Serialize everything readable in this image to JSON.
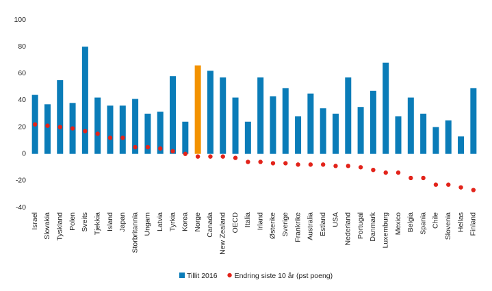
{
  "chart_data": {
    "type": "bar",
    "categories": [
      "Israel",
      "Slovakia",
      "Tyskland",
      "Polen",
      "Sveits",
      "Tjekkia",
      "Island",
      "Japan",
      "Storbritannia",
      "Ungarn",
      "Latvia",
      "Tyrkia",
      "Korea",
      "Norge",
      "Canada",
      "New Zealand",
      "OECD",
      "Italia",
      "Irland",
      "Østerike",
      "Sverige",
      "Frankrike",
      "Australia",
      "Estland",
      "USA",
      "Nederland",
      "Portugal",
      "Danmark",
      "Luxemburg",
      "Mexico",
      "Belgia",
      "Spania",
      "Chile",
      "Slovenia",
      "Hellas",
      "Finland"
    ],
    "series": [
      {
        "name": "Tillit 2016",
        "type": "bar",
        "color": "#0a7cb8",
        "colors": [
          "#0a7cb8",
          "#0a7cb8",
          "#0a7cb8",
          "#0a7cb8",
          "#0a7cb8",
          "#0a7cb8",
          "#0a7cb8",
          "#0a7cb8",
          "#0a7cb8",
          "#0a7cb8",
          "#0a7cb8",
          "#0a7cb8",
          "#0a7cb8",
          "#f39200",
          "#0a7cb8",
          "#0a7cb8",
          "#0a7cb8",
          "#0a7cb8",
          "#0a7cb8",
          "#0a7cb8",
          "#0a7cb8",
          "#0a7cb8",
          "#0a7cb8",
          "#0a7cb8",
          "#0a7cb8",
          "#0a7cb8",
          "#0a7cb8",
          "#0a7cb8",
          "#0a7cb8",
          "#0a7cb8",
          "#0a7cb8",
          "#0a7cb8",
          "#0a7cb8",
          "#0a7cb8",
          "#0a7cb8",
          "#0a7cb8"
        ],
        "values": [
          44,
          37,
          55,
          38,
          80,
          42,
          36,
          36,
          41,
          30,
          31.5,
          58,
          24,
          66,
          62,
          57,
          42,
          24,
          57,
          43,
          49,
          28,
          45,
          34,
          30,
          57,
          35,
          47,
          68,
          28,
          42,
          30,
          20,
          25,
          13,
          49
        ]
      },
      {
        "name": "Endring siste 10 år (pst poeng)",
        "type": "scatter",
        "color": "#e2231a",
        "values": [
          22,
          21,
          20,
          19,
          17,
          15,
          12,
          12,
          5,
          5,
          4,
          2,
          0,
          -2,
          -2,
          -2,
          -3,
          -6,
          -6,
          -7,
          -7,
          -8,
          -8,
          -8,
          -9,
          -9,
          -10,
          -12,
          -14,
          -14,
          -18,
          -18,
          -23,
          -23,
          -25,
          -27
        ]
      }
    ],
    "ylim": [
      -40,
      100
    ],
    "yticks": [
      -40,
      -20,
      0,
      20,
      40,
      60,
      80,
      100
    ],
    "grid": false
  }
}
